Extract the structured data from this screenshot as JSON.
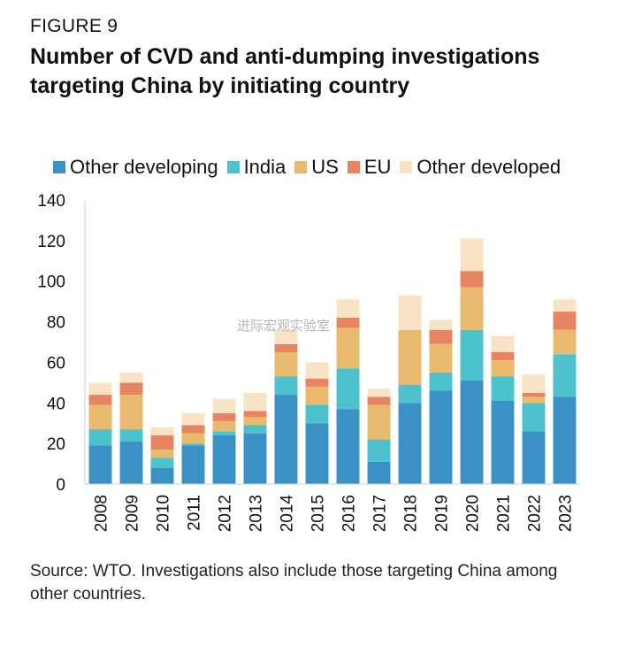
{
  "figure_label": "FIGURE 9",
  "title": "Number of CVD and anti-dumping investigations targeting China by initiating country",
  "source": "Source: WTO. Investigations also include those targeting China among other countries.",
  "watermark": "迸际宏观实验室",
  "chart_data": {
    "type": "bar",
    "stacked": true,
    "title": "Number of CVD and anti-dumping investigations targeting China by initiating country",
    "xlabel": "",
    "ylabel": "",
    "ylim": [
      0,
      140
    ],
    "yticks": [
      0,
      20,
      40,
      60,
      80,
      100,
      120,
      140
    ],
    "legend_position": "top",
    "categories": [
      "2008",
      "2009",
      "2010",
      "2011",
      "2012",
      "2013",
      "2014",
      "2015",
      "2016",
      "2017",
      "2018",
      "2019",
      "2020",
      "2021",
      "2022",
      "2023"
    ],
    "series": [
      {
        "name": "Other developing",
        "color": "#3a91c6",
        "values": [
          19,
          21,
          8,
          19,
          24,
          25,
          44,
          30,
          37,
          11,
          40,
          46,
          51,
          41,
          26,
          43
        ]
      },
      {
        "name": "India",
        "color": "#4cc3cc",
        "values": [
          8,
          6,
          5,
          1,
          2,
          4,
          9,
          9,
          20,
          11,
          9,
          9,
          25,
          12,
          14,
          21
        ]
      },
      {
        "name": "US",
        "color": "#e9b96e",
        "values": [
          12,
          17,
          4,
          5,
          5,
          4,
          12,
          9,
          20,
          17,
          27,
          14,
          21,
          8,
          3,
          12
        ]
      },
      {
        "name": "EU",
        "color": "#e98463",
        "values": [
          5,
          6,
          7,
          4,
          4,
          3,
          4,
          4,
          5,
          4,
          0,
          7,
          8,
          4,
          2,
          9
        ]
      },
      {
        "name": "Other developed",
        "color": "#f8e3c4",
        "values": [
          6,
          5,
          4,
          6,
          7,
          9,
          7,
          8,
          9,
          4,
          17,
          5,
          16,
          8,
          9,
          6
        ]
      }
    ]
  }
}
